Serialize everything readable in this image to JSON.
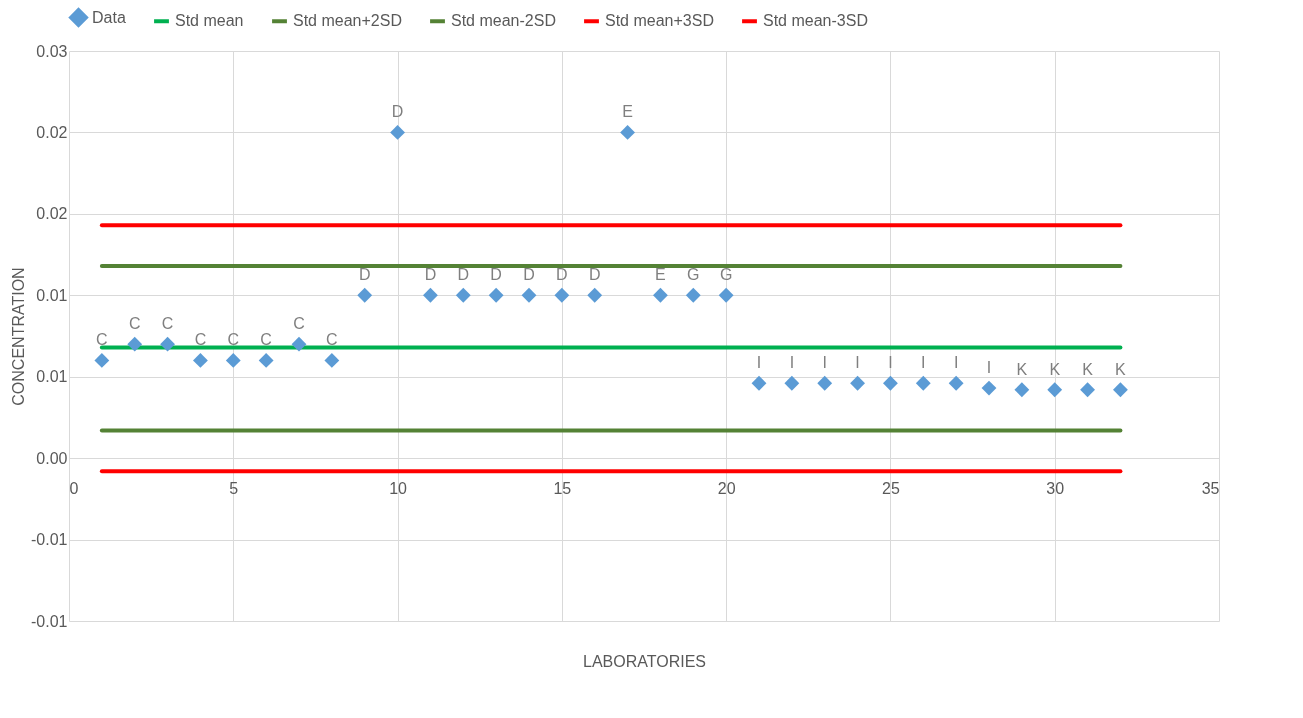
{
  "chart_data": {
    "type": "scatter",
    "xlabel": "LABORATORIES",
    "ylabel": "CONCENTRATION",
    "xlim": [
      0,
      35
    ],
    "xticks": [
      0,
      5,
      10,
      15,
      20,
      25,
      30,
      35
    ],
    "ylim": [
      -0.01,
      0.025
    ],
    "yticks": [
      {
        "value": 0.025,
        "label": "0.03"
      },
      0.02,
      {
        "value": 0.015,
        "label": "0.02"
      },
      0.01,
      {
        "value": 0.005,
        "label": "0.01"
      },
      {
        "value": 0,
        "label": "0.00"
      },
      {
        "value": -0.005,
        "label": "-0.01"
      },
      -0.01
    ],
    "grid": true,
    "legend": "top",
    "line_style": "solid",
    "series": [
      {
        "name": "Data",
        "marker": "diamond",
        "color": "#5b9bd5",
        "x": [
          1,
          2,
          3,
          4,
          5,
          6,
          7,
          8,
          9,
          10,
          11,
          12,
          13,
          14,
          15,
          16,
          17,
          18,
          19,
          20,
          21,
          22,
          23,
          24,
          25,
          26,
          27,
          28,
          29,
          30,
          31,
          32
        ],
        "values": [
          0.006,
          0.007,
          0.007,
          0.006,
          0.006,
          0.006,
          0.007,
          0.006,
          0.01,
          0.02,
          0.01,
          0.01,
          0.01,
          0.01,
          0.01,
          0.01,
          0.02,
          0.01,
          0.01,
          0.01,
          0.0046,
          0.0046,
          0.0046,
          0.0046,
          0.0046,
          0.0046,
          0.0046,
          0.0043,
          0.0042,
          0.0042,
          0.0042,
          0.0042
        ],
        "value_labels": [
          "C",
          "C",
          "C",
          "C",
          "C",
          "C",
          "C",
          "C",
          "D",
          "D",
          "D",
          "D",
          "D",
          "D",
          "D",
          "D",
          "E",
          "E",
          "G",
          "G",
          "I",
          "I",
          "I",
          "I",
          "I",
          "I",
          "I",
          "I",
          "K",
          "K",
          "K",
          "K"
        ]
      },
      {
        "name": "Std mean",
        "type": "line",
        "marker": "none",
        "color": "#00b050",
        "x": [
          1,
          32
        ],
        "values": [
          0.0068,
          0.0068
        ]
      },
      {
        "name": "Std mean+2SD",
        "type": "line",
        "marker": "none",
        "color": "#548235",
        "x": [
          1,
          32
        ],
        "values": [
          0.0118,
          0.0118
        ]
      },
      {
        "name": "Std mean-2SD",
        "type": "line",
        "marker": "none",
        "color": "#548235",
        "x": [
          1,
          32
        ],
        "values": [
          0.0017,
          0.0017
        ]
      },
      {
        "name": "Std mean+3SD",
        "type": "line",
        "marker": "none",
        "color": "#ff0000",
        "x": [
          1,
          32
        ],
        "values": [
          0.0143,
          0.0143
        ]
      },
      {
        "name": "Std mean-3SD",
        "type": "line",
        "marker": "none",
        "color": "#ff0000",
        "x": [
          1,
          32
        ],
        "values": [
          -0.0008,
          -0.0008
        ]
      }
    ]
  }
}
